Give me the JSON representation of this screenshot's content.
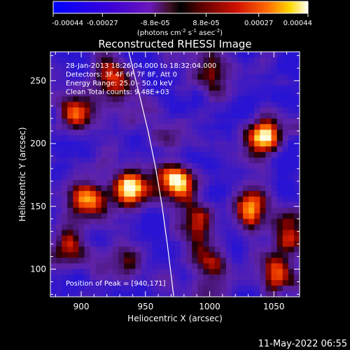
{
  "chart_data": {
    "type": "heatmap",
    "title": "Reconstructed RHESSI Image",
    "xlabel": "Heliocentric X (arcsec)",
    "ylabel": "Heliocentric Y (arcsec)",
    "xlim": [
      876,
      1070
    ],
    "ylim": [
      78,
      273
    ],
    "x_ticks": [
      900,
      950,
      1000,
      1050
    ],
    "y_ticks": [
      100,
      150,
      200,
      250
    ],
    "colorbar": {
      "range": [
        -0.00044,
        0.00044
      ],
      "ticks": [
        -0.00044,
        -0.00027,
        -8.8e-05,
        8.8e-05,
        0.00027,
        0.00044
      ],
      "tick_labels": [
        "-0.00044",
        "-0.00027",
        "-8.8e-05",
        "8.8e-05",
        "0.00027",
        "0.00044"
      ],
      "unit_prefix": "(photons cm",
      "unit_exp1": "-2",
      "unit_mid": " s",
      "unit_exp2": "-1",
      "unit_end": " asec",
      "unit_exp3": "-2",
      "unit_close": ")"
    },
    "info_lines": [
      "28-Jan-2013 18:26:04.000 to 18:32:04.000",
      "Detectors: 3F 4F 6F 7F 8F, Att 0",
      "Energy Range: 25.0 - 50.0 keV",
      "Clean     Total counts: 9.48E+03"
    ],
    "peak_label": "Position of Peak = [940,171]",
    "peak": [
      940,
      171
    ],
    "limb_curve": [
      [
        937,
        273
      ],
      [
        945,
        240
      ],
      [
        952,
        210
      ],
      [
        958,
        180
      ],
      [
        963,
        150
      ],
      [
        967,
        120
      ],
      [
        970,
        95
      ],
      [
        972,
        78
      ]
    ],
    "sources": [
      {
        "x": 940,
        "y": 165,
        "intensity": 1.0
      },
      {
        "x": 975,
        "y": 170,
        "intensity": 0.9
      },
      {
        "x": 905,
        "y": 155,
        "intensity": 0.75
      },
      {
        "x": 895,
        "y": 222,
        "intensity": 0.7
      },
      {
        "x": 925,
        "y": 250,
        "intensity": 0.6
      },
      {
        "x": 1040,
        "y": 205,
        "intensity": 0.85
      },
      {
        "x": 1030,
        "y": 150,
        "intensity": 0.8
      },
      {
        "x": 1060,
        "y": 130,
        "intensity": 0.75
      },
      {
        "x": 1000,
        "y": 100,
        "intensity": 0.55
      },
      {
        "x": 890,
        "y": 120,
        "intensity": 0.5
      },
      {
        "x": 1005,
        "y": 255,
        "intensity": 0.5
      },
      {
        "x": 990,
        "y": 135,
        "intensity": 0.55
      },
      {
        "x": 935,
        "y": 110,
        "intensity": 0.5
      },
      {
        "x": 1055,
        "y": 95,
        "intensity": 0.6
      },
      {
        "x": 970,
        "y": 205,
        "intensity": 0.4
      }
    ]
  },
  "timestamp": "11-May-2022 06:55"
}
